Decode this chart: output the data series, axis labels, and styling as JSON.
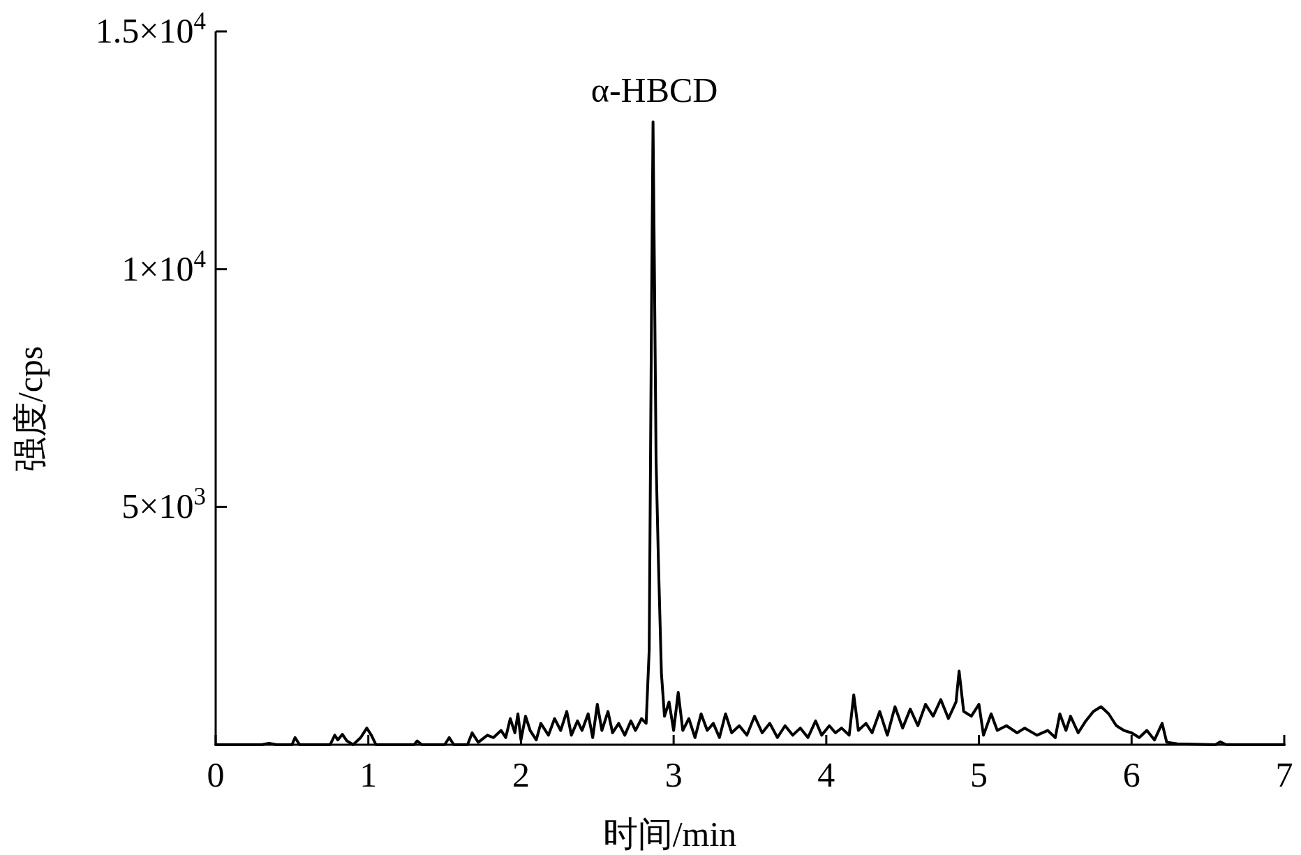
{
  "chart_data": {
    "type": "line",
    "xlabel": "时间/min",
    "ylabel": "强度/cps",
    "color": "#000000",
    "marker": "none",
    "line_style": "solid",
    "grid": false,
    "xlim": [
      0,
      7
    ],
    "ylim": [
      0,
      15000
    ],
    "xticks": [
      0,
      1,
      2,
      3,
      4,
      5,
      6,
      7
    ],
    "yticks": [
      {
        "value": 5000,
        "label": "5×10$^{3}$"
      },
      {
        "value": 10000,
        "label": "1×10$^{4}$"
      },
      {
        "value": 15000,
        "label": "1.5×10$^{4}$"
      }
    ],
    "annotations": [
      {
        "text": "α-HBCD",
        "x": 2.865,
        "y": 13100
      }
    ],
    "x": [
      0,
      0.3,
      0.35,
      0.4,
      0.5,
      0.52,
      0.55,
      0.75,
      0.78,
      0.8,
      0.83,
      0.86,
      0.9,
      0.95,
      0.99,
      1.02,
      1.05,
      1.3,
      1.32,
      1.35,
      1.5,
      1.53,
      1.56,
      1.65,
      1.68,
      1.72,
      1.78,
      1.82,
      1.87,
      1.9,
      1.93,
      1.96,
      1.98,
      2.0,
      2.03,
      2.06,
      2.1,
      2.13,
      2.18,
      2.22,
      2.26,
      2.3,
      2.33,
      2.37,
      2.4,
      2.44,
      2.47,
      2.5,
      2.53,
      2.57,
      2.6,
      2.64,
      2.68,
      2.72,
      2.75,
      2.79,
      2.82,
      2.84,
      2.855,
      2.865,
      2.875,
      2.885,
      2.9,
      2.92,
      2.94,
      2.97,
      3.0,
      3.03,
      3.06,
      3.1,
      3.14,
      3.18,
      3.22,
      3.26,
      3.3,
      3.34,
      3.38,
      3.43,
      3.48,
      3.53,
      3.58,
      3.63,
      3.68,
      3.73,
      3.78,
      3.83,
      3.88,
      3.93,
      3.97,
      4.02,
      4.06,
      4.1,
      4.15,
      4.18,
      4.21,
      4.26,
      4.3,
      4.35,
      4.4,
      4.45,
      4.5,
      4.55,
      4.6,
      4.65,
      4.7,
      4.75,
      4.8,
      4.85,
      4.87,
      4.9,
      4.95,
      5.0,
      5.03,
      5.08,
      5.12,
      5.18,
      5.25,
      5.3,
      5.38,
      5.45,
      5.5,
      5.53,
      5.57,
      5.6,
      5.65,
      5.7,
      5.75,
      5.8,
      5.85,
      5.9,
      5.95,
      6.0,
      6.05,
      6.1,
      6.15,
      6.2,
      6.23,
      6.3,
      6.55,
      6.58,
      6.62,
      7
    ],
    "values": [
      0,
      0,
      30,
      0,
      0,
      150,
      0,
      0,
      200,
      100,
      220,
      80,
      0,
      150,
      350,
      200,
      0,
      0,
      80,
      0,
      0,
      150,
      0,
      0,
      250,
      50,
      200,
      150,
      300,
      150,
      550,
      250,
      650,
      100,
      600,
      300,
      100,
      450,
      200,
      550,
      300,
      700,
      200,
      500,
      300,
      650,
      150,
      850,
      300,
      700,
      250,
      450,
      200,
      500,
      300,
      550,
      450,
      2000,
      9000,
      13100,
      9700,
      6000,
      3900,
      1500,
      600,
      900,
      300,
      1100,
      300,
      550,
      150,
      650,
      300,
      450,
      150,
      650,
      250,
      400,
      200,
      600,
      250,
      450,
      150,
      400,
      200,
      350,
      150,
      500,
      200,
      400,
      250,
      350,
      200,
      1050,
      300,
      450,
      250,
      700,
      200,
      800,
      350,
      750,
      400,
      850,
      600,
      950,
      550,
      900,
      1550,
      700,
      600,
      850,
      200,
      650,
      300,
      400,
      250,
      350,
      200,
      300,
      150,
      650,
      300,
      600,
      250,
      500,
      700,
      800,
      650,
      400,
      300,
      250,
      150,
      300,
      100,
      450,
      50,
      20,
      0,
      60,
      0,
      0
    ]
  }
}
